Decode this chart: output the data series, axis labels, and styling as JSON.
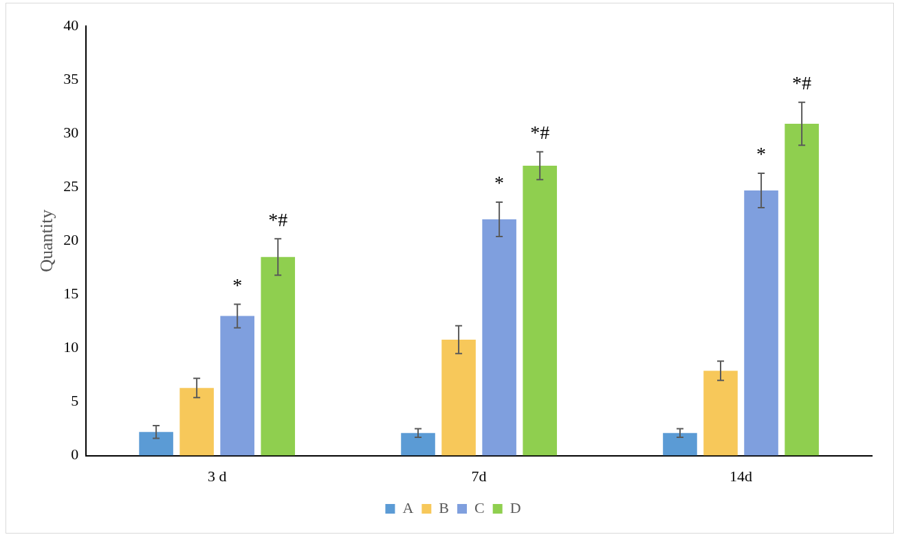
{
  "chart_data": {
    "type": "bar",
    "ylabel": "Quantity",
    "categories": [
      "3 d",
      "7d",
      "14d"
    ],
    "series": [
      {
        "name": "A",
        "color": "#5b9bd5",
        "values": [
          2.2,
          2.1,
          2.1
        ],
        "errors": [
          0.6,
          0.4,
          0.4
        ]
      },
      {
        "name": "B",
        "color": "#f7c85a",
        "values": [
          6.3,
          10.8,
          7.9
        ],
        "errors": [
          0.9,
          1.3,
          0.9
        ]
      },
      {
        "name": "C",
        "color": "#7f9fde",
        "values": [
          13.0,
          22.0,
          24.7
        ],
        "errors": [
          1.1,
          1.6,
          1.6
        ]
      },
      {
        "name": "D",
        "color": "#8fcf4f",
        "values": [
          18.5,
          27.0,
          30.9
        ],
        "errors": [
          1.7,
          1.3,
          2.0
        ]
      }
    ],
    "ylim": [
      0,
      40
    ],
    "yticks": [
      0,
      5,
      10,
      15,
      20,
      25,
      30,
      35,
      40
    ],
    "grid": false,
    "legend": "bottom",
    "annotations": [
      "*",
      "*#",
      "*",
      "*#",
      "*",
      "*#"
    ]
  }
}
